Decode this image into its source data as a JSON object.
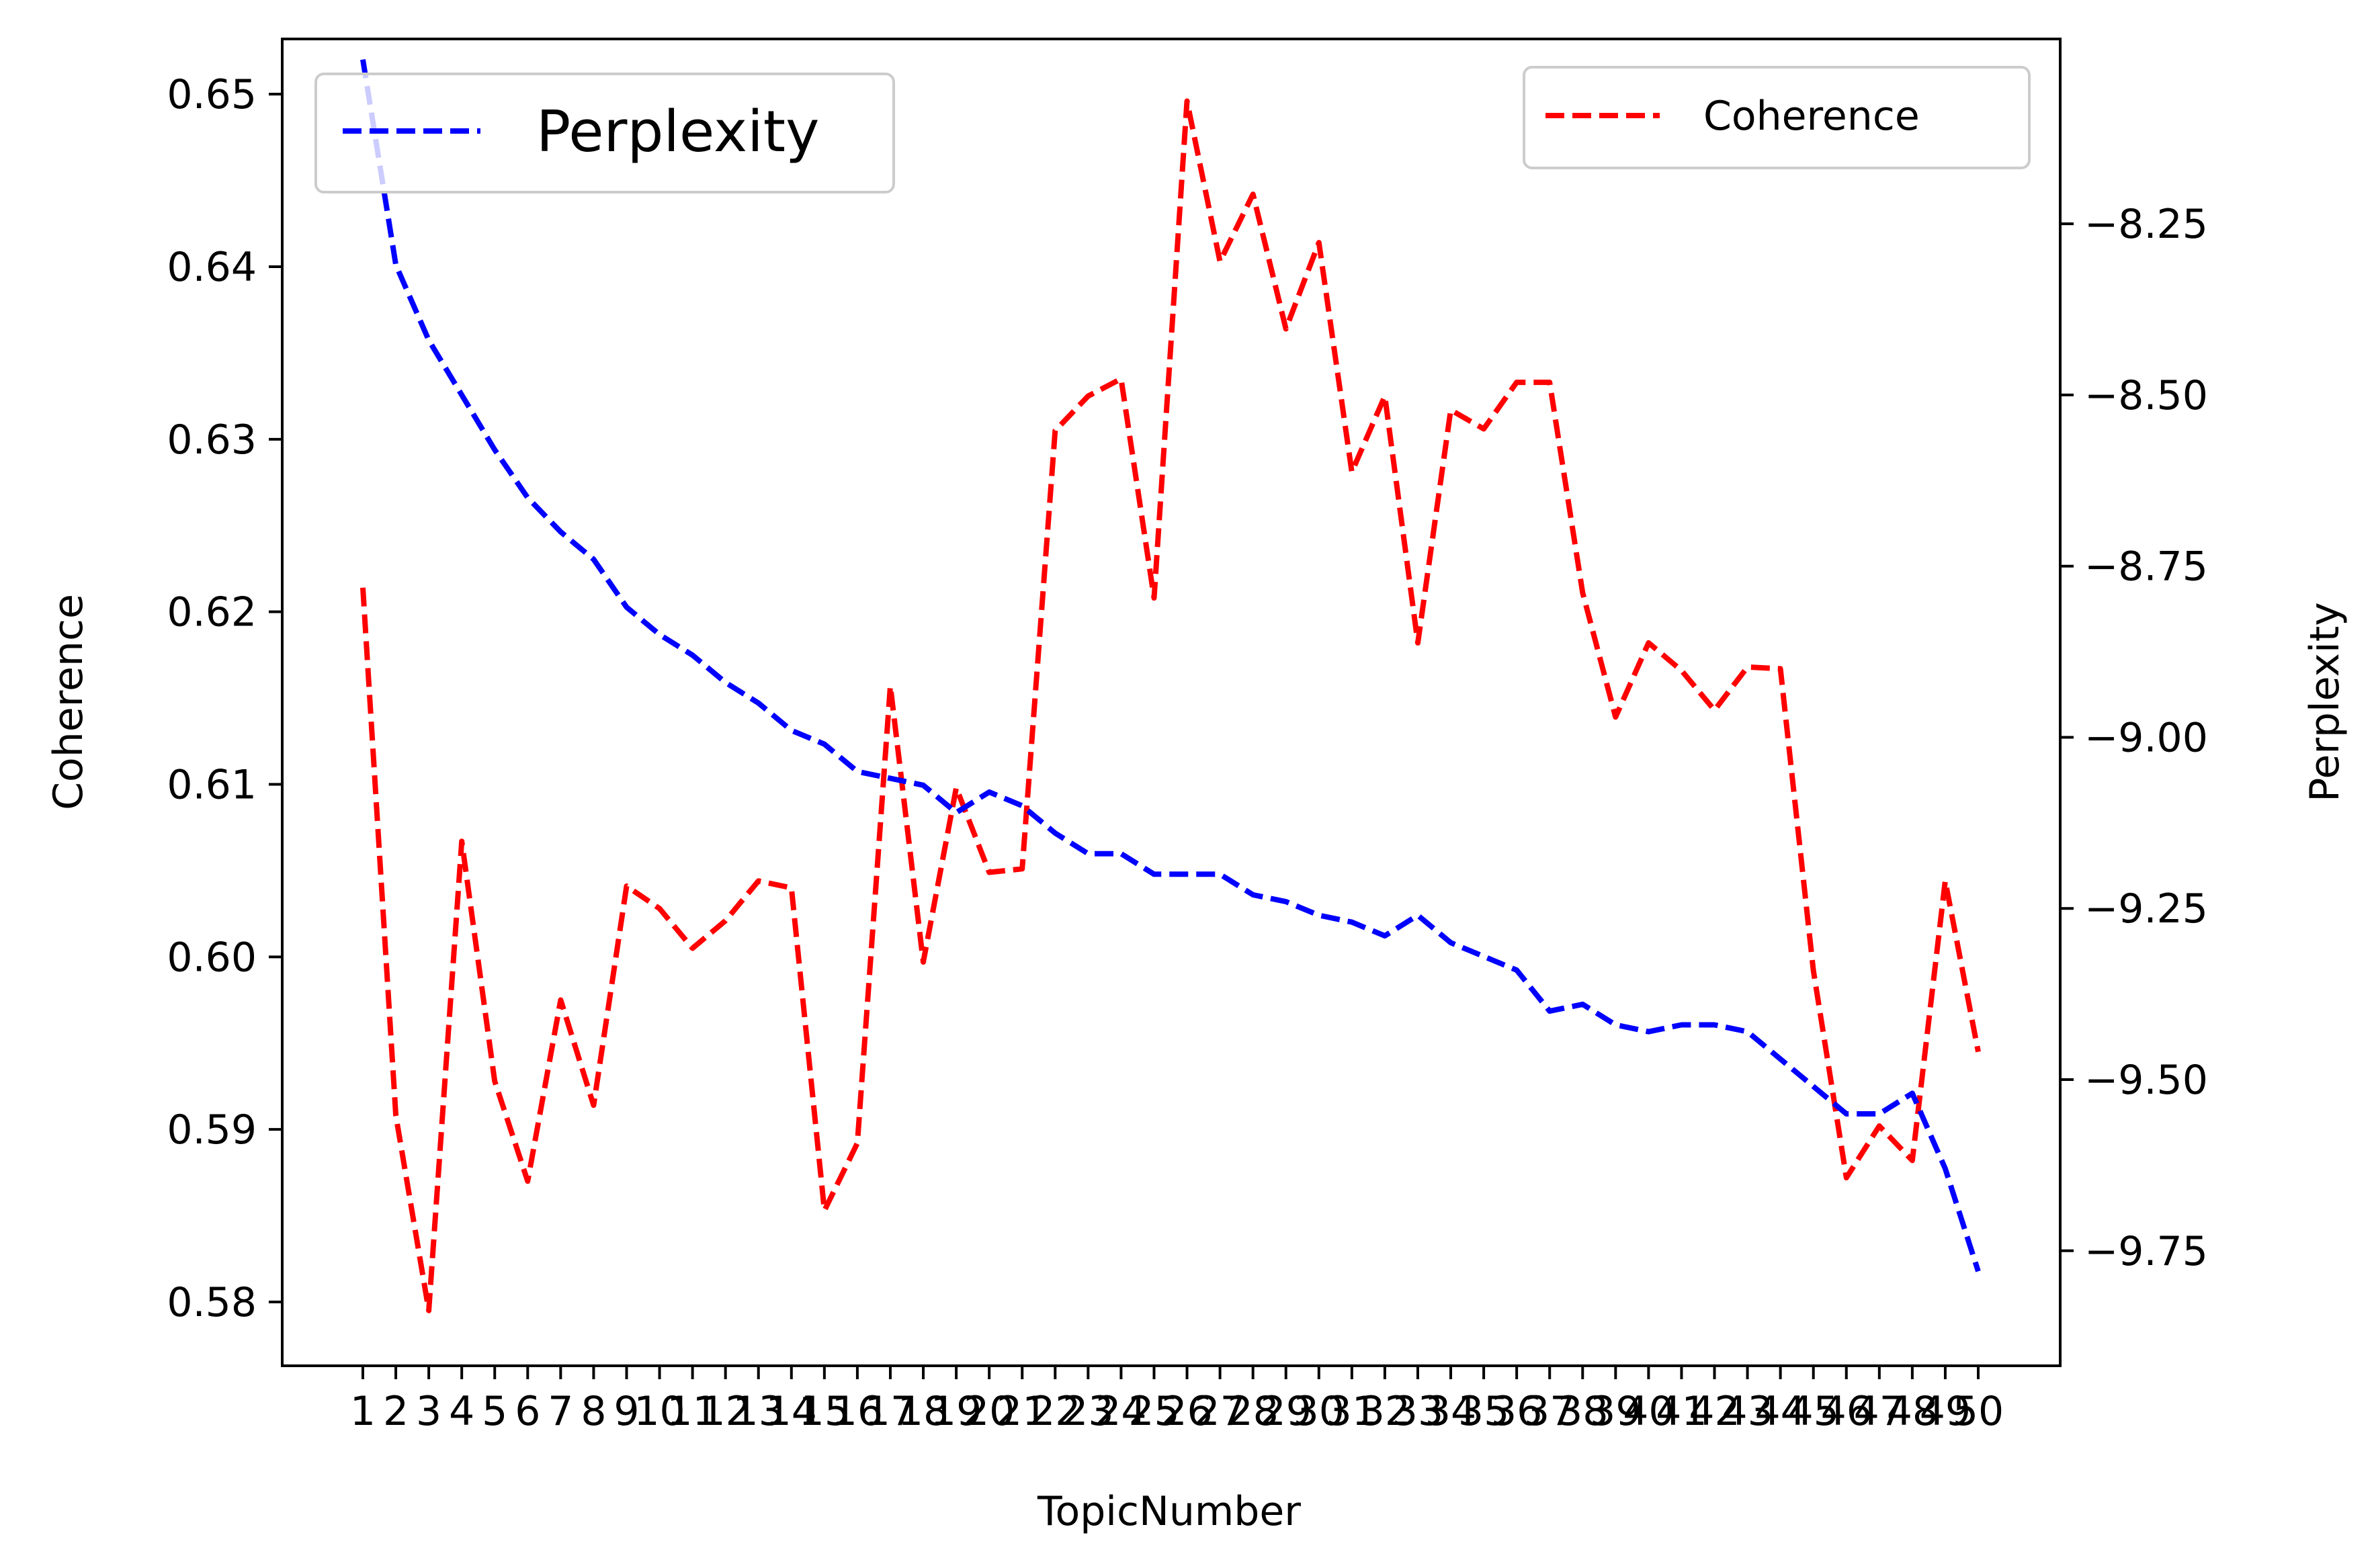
{
  "chart_data": {
    "type": "line",
    "xlabel": "TopicNumber",
    "ylabel_left": "Coherence",
    "ylabel_right": "Perplexity",
    "x": [
      1,
      2,
      3,
      4,
      5,
      6,
      7,
      8,
      9,
      10,
      11,
      12,
      13,
      14,
      15,
      16,
      17,
      18,
      19,
      20,
      21,
      22,
      23,
      24,
      25,
      26,
      27,
      28,
      29,
      30,
      31,
      32,
      33,
      34,
      35,
      36,
      37,
      38,
      39,
      40,
      41,
      42,
      43,
      44,
      45,
      46,
      47,
      48,
      49,
      50
    ],
    "x_tick_labels": [
      "1",
      "2",
      "3",
      "4",
      "5",
      "6",
      "7",
      "8",
      "9",
      "10",
      "11",
      "12",
      "13",
      "14",
      "15",
      "16",
      "17",
      "18",
      "19",
      "20",
      "21",
      "22",
      "23",
      "24",
      "25",
      "26",
      "27",
      "28",
      "29",
      "30",
      "31",
      "32",
      "33",
      "34",
      "35",
      "36",
      "37",
      "38",
      "39",
      "40",
      "41",
      "42",
      "43",
      "44",
      "45",
      "46",
      "47",
      "48",
      "49",
      "50"
    ],
    "ylim_left": [
      0.5763,
      0.6532
    ],
    "yticks_left": [
      "0.58",
      "0.59",
      "0.60",
      "0.61",
      "0.62",
      "0.63",
      "0.64",
      "0.65"
    ],
    "ylim_right": [
      -9.918,
      -7.98
    ],
    "yticks_right": [
      "−9.75",
      "−9.50",
      "−9.25",
      "−9.00",
      "−8.75",
      "−8.50",
      "−8.25"
    ],
    "grid": false,
    "series": [
      {
        "name": "Coherence",
        "axis": "left",
        "color": "#ff0000",
        "style": "dashed",
        "legend": "top-right",
        "values": [
          0.6214,
          0.5908,
          0.5795,
          0.6067,
          0.5928,
          0.587,
          0.5975,
          0.5914,
          0.6041,
          0.6028,
          0.6005,
          0.6021,
          0.6044,
          0.604,
          0.5853,
          0.5892,
          0.6157,
          0.5997,
          0.6098,
          0.6049,
          0.6051,
          0.6305,
          0.6325,
          0.6335,
          0.6208,
          0.6496,
          0.6403,
          0.6442,
          0.6364,
          0.6414,
          0.6281,
          0.6325,
          0.6182,
          0.6317,
          0.6306,
          0.6333,
          0.6333,
          0.6211,
          0.6139,
          0.6182,
          0.6166,
          0.6143,
          0.6168,
          0.6167,
          0.5992,
          0.5872,
          0.5902,
          0.5882,
          0.6044,
          0.5945
        ]
      },
      {
        "name": "Perplexity",
        "axis": "right",
        "color": "#0000ff",
        "style": "dashed",
        "legend": "top-left",
        "values": [
          -8.01,
          -8.31,
          -8.42,
          -8.5,
          -8.58,
          -8.65,
          -8.7,
          -8.74,
          -8.81,
          -8.85,
          -8.88,
          -8.92,
          -8.95,
          -8.99,
          -9.01,
          -9.05,
          -9.06,
          -9.07,
          -9.11,
          -9.08,
          -9.1,
          -9.14,
          -9.17,
          -9.17,
          -9.2,
          -9.2,
          -9.2,
          -9.23,
          -9.24,
          -9.26,
          -9.27,
          -9.29,
          -9.26,
          -9.3,
          -9.32,
          -9.34,
          -9.4,
          -9.39,
          -9.42,
          -9.43,
          -9.42,
          -9.42,
          -9.43,
          -9.47,
          -9.51,
          -9.55,
          -9.55,
          -9.52,
          -9.63,
          -9.78
        ]
      }
    ]
  }
}
